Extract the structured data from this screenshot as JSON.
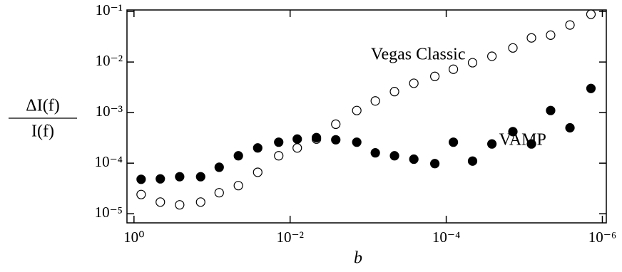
{
  "chart_data": {
    "type": "scatter",
    "xlabel": "b",
    "ylabel": [
      "ΔI(f)",
      "I(f)"
    ],
    "x": [
      0.81,
      0.46,
      0.26,
      0.14,
      0.081,
      0.046,
      0.026,
      0.014,
      0.0081,
      0.0046,
      0.0026,
      0.0014,
      0.00081,
      0.00046,
      0.00026,
      0.00014,
      8.1e-05,
      4.6e-05,
      2.6e-05,
      1.4e-05,
      8.1e-06,
      4.6e-06,
      2.6e-06,
      1.4e-06
    ],
    "series": [
      {
        "name": "Vegas Classic",
        "color": "#000000",
        "marker": "open",
        "values": [
          2.4e-05,
          1.7e-05,
          1.5e-05,
          1.7e-05,
          2.6e-05,
          3.6e-05,
          6.6e-05,
          0.00014,
          0.0002,
          0.0003,
          0.00059,
          0.0011,
          0.0017,
          0.0026,
          0.0038,
          0.0052,
          0.0072,
          0.0097,
          0.013,
          0.019,
          0.03,
          0.034,
          0.054,
          0.088
        ]
      },
      {
        "name": "VAMP",
        "color": "#000000",
        "marker": "filled",
        "values": [
          4.8e-05,
          4.9e-05,
          5.4e-05,
          5.4e-05,
          8.3e-05,
          0.00014,
          0.0002,
          0.00026,
          0.0003,
          0.00032,
          0.00029,
          0.00026,
          0.00016,
          0.00014,
          0.00012,
          9.8e-05,
          0.00026,
          0.00011,
          0.00024,
          0.00042,
          0.00024,
          0.0011,
          0.0005,
          0.003
        ]
      }
    ],
    "xscale": "log",
    "yscale": "log",
    "x_reversed": true,
    "xlim": [
      1.23,
      8.9e-07
    ],
    "ylim": [
      6.6e-06,
      0.107
    ],
    "xticks": [
      {
        "value": 1,
        "label": "10⁰"
      },
      {
        "value": 0.01,
        "label": "10⁻²"
      },
      {
        "value": 0.0001,
        "label": "10⁻⁴"
      },
      {
        "value": 1e-06,
        "label": "10⁻⁶"
      }
    ],
    "yticks": [
      {
        "value": 1e-05,
        "label": "10⁻⁵"
      },
      {
        "value": 0.0001,
        "label": "10⁻⁴"
      },
      {
        "value": 0.001,
        "label": "10⁻³"
      },
      {
        "value": 0.01,
        "label": "10⁻²"
      },
      {
        "value": 0.1,
        "label": "10⁻¹"
      }
    ],
    "grid": false
  }
}
